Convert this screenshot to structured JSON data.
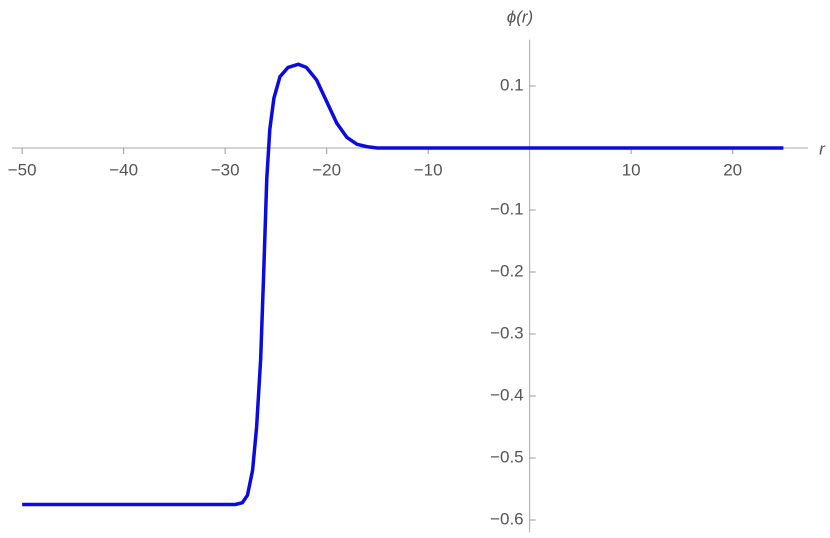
{
  "chart_data": {
    "type": "line",
    "xlabel": "r",
    "ylabel": "ϕ(r)",
    "color": "#0b0be0",
    "x": [
      -50,
      -29,
      -28.3,
      -27.8,
      -27.3,
      -26.9,
      -26.5,
      -26.2,
      -25.9,
      -25.6,
      -25.2,
      -24.6,
      -23.8,
      -22.8,
      -22,
      -21,
      -20,
      -19,
      -18,
      -17,
      -16,
      -15,
      25
    ],
    "values": [
      -0.575,
      -0.575,
      -0.572,
      -0.56,
      -0.52,
      -0.45,
      -0.34,
      -0.2,
      -0.05,
      0.03,
      0.08,
      0.115,
      0.13,
      0.135,
      0.13,
      0.11,
      0.075,
      0.04,
      0.017,
      0.006,
      0.002,
      0,
      0
    ],
    "xlim": [
      -51,
      29
    ],
    "ylim": [
      -0.62,
      0.175
    ],
    "xticks": [
      {
        "value": -50,
        "label": "−50"
      },
      {
        "value": -40,
        "label": "−40"
      },
      {
        "value": -30,
        "label": "−30"
      },
      {
        "value": -20,
        "label": "−20"
      },
      {
        "value": -10,
        "label": "−10"
      },
      10,
      20
    ],
    "yticks": [
      0.1,
      {
        "value": -0.1,
        "label": "−0.1"
      },
      {
        "value": -0.2,
        "label": "−0.2"
      },
      {
        "value": -0.3,
        "label": "−0.3"
      },
      {
        "value": -0.4,
        "label": "−0.4"
      },
      {
        "value": -0.5,
        "label": "−0.5"
      },
      {
        "value": -0.6,
        "label": "−0.6"
      }
    ]
  }
}
